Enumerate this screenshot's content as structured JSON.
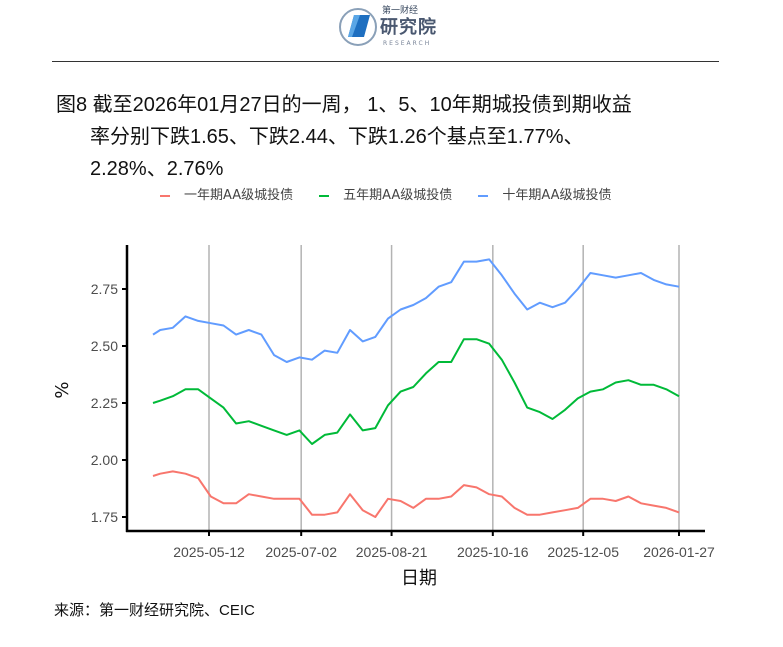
{
  "header": {
    "logo_text_small": "第一财经",
    "logo_text_big": "研究院",
    "logo_text_en": "RESEARCH"
  },
  "title": {
    "line1": "图8  截至2026年01月27日的一周， 1、5、10年期城投债到期收益",
    "line2": "率分别下跌1.65、下跌2.44、下跌1.26个基点至1.77%、",
    "line3": "2.28%、2.76%"
  },
  "source": "来源：第一财经研究院、CEIC",
  "chart_data": {
    "type": "line",
    "xlabel": "日期",
    "ylabel": "%",
    "ylim": [
      1.72,
      2.93
    ],
    "xlim": [
      "2025-04-03",
      "2026-02-10"
    ],
    "x_ticks": [
      "2025-05-12",
      "2025-07-02",
      "2025-08-21",
      "2025-10-16",
      "2025-12-05",
      "2026-01-27"
    ],
    "y_ticks": [
      "1.75",
      "2.00",
      "2.25",
      "2.50",
      "2.75"
    ],
    "grid": "vertical major only",
    "legend_position": "top",
    "x": [
      "2025-04-11",
      "2025-04-15",
      "2025-04-22",
      "2025-04-29",
      "2025-05-06",
      "2025-05-13",
      "2025-05-20",
      "2025-05-27",
      "2025-06-03",
      "2025-06-10",
      "2025-06-17",
      "2025-06-24",
      "2025-07-01",
      "2025-07-08",
      "2025-07-15",
      "2025-07-22",
      "2025-07-29",
      "2025-08-05",
      "2025-08-12",
      "2025-08-19",
      "2025-08-26",
      "2025-09-02",
      "2025-09-09",
      "2025-09-16",
      "2025-09-23",
      "2025-09-30",
      "2025-10-07",
      "2025-10-14",
      "2025-10-21",
      "2025-10-28",
      "2025-11-04",
      "2025-11-11",
      "2025-11-18",
      "2025-11-25",
      "2025-12-02",
      "2025-12-09",
      "2025-12-16",
      "2025-12-23",
      "2025-12-30",
      "2026-01-06",
      "2026-01-13",
      "2026-01-20",
      "2026-01-27"
    ],
    "series": [
      {
        "name": "一年期AA级城投债",
        "color": "#F8766D",
        "values": [
          1.93,
          1.94,
          1.95,
          1.94,
          1.92,
          1.84,
          1.81,
          1.81,
          1.85,
          1.84,
          1.83,
          1.83,
          1.83,
          1.76,
          1.76,
          1.77,
          1.85,
          1.78,
          1.75,
          1.83,
          1.82,
          1.79,
          1.83,
          1.83,
          1.84,
          1.89,
          1.88,
          1.85,
          1.84,
          1.79,
          1.76,
          1.76,
          1.77,
          1.78,
          1.79,
          1.83,
          1.83,
          1.82,
          1.84,
          1.81,
          1.8,
          1.79,
          1.77
        ]
      },
      {
        "name": "五年期AA级城投债",
        "color": "#00BA38",
        "values": [
          2.25,
          2.26,
          2.28,
          2.31,
          2.31,
          2.27,
          2.23,
          2.16,
          2.17,
          2.15,
          2.13,
          2.11,
          2.13,
          2.07,
          2.11,
          2.12,
          2.2,
          2.13,
          2.14,
          2.24,
          2.3,
          2.32,
          2.38,
          2.43,
          2.43,
          2.53,
          2.53,
          2.51,
          2.44,
          2.34,
          2.23,
          2.21,
          2.18,
          2.22,
          2.27,
          2.3,
          2.31,
          2.34,
          2.35,
          2.33,
          2.33,
          2.31,
          2.28
        ]
      },
      {
        "name": "十年期AA级城投债",
        "color": "#619CFF",
        "values": [
          2.55,
          2.57,
          2.58,
          2.63,
          2.61,
          2.6,
          2.59,
          2.55,
          2.57,
          2.55,
          2.46,
          2.43,
          2.45,
          2.44,
          2.48,
          2.47,
          2.57,
          2.52,
          2.54,
          2.62,
          2.66,
          2.68,
          2.71,
          2.76,
          2.78,
          2.87,
          2.87,
          2.88,
          2.81,
          2.73,
          2.66,
          2.69,
          2.67,
          2.69,
          2.75,
          2.82,
          2.81,
          2.8,
          2.81,
          2.82,
          2.79,
          2.77,
          2.76
        ]
      }
    ]
  }
}
